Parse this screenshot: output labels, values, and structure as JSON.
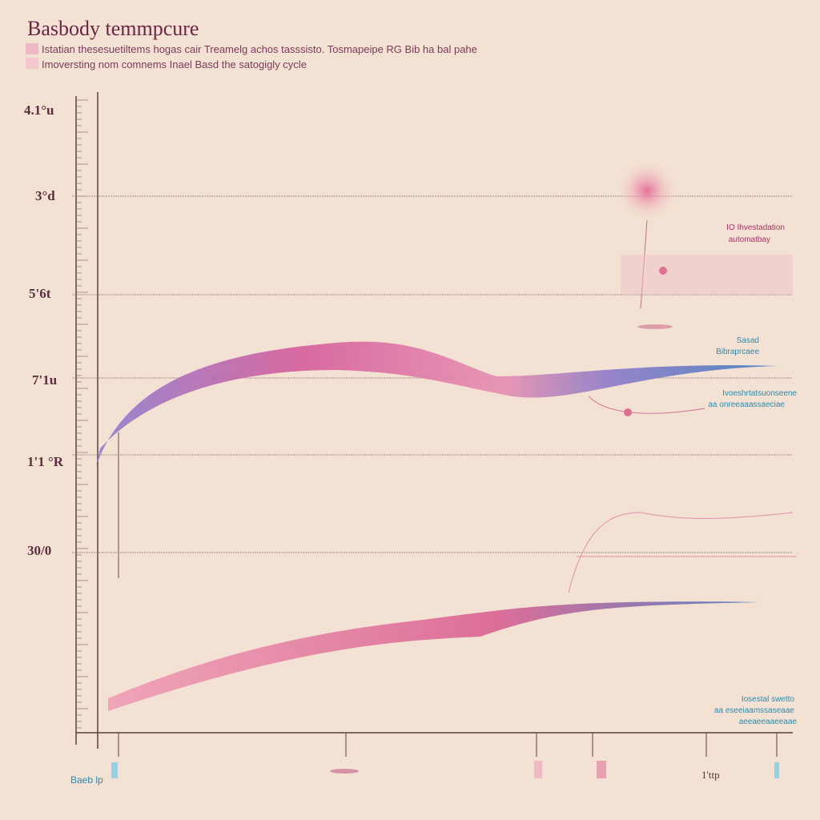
{
  "header": {
    "title": "Basbody temmpcure",
    "subtitle": [
      "Istatian thesesuetiltems hogas cair Treamelg achos tasssisto. Tosmapeipe RG Bib ha bal pahe",
      "Imoversting nom comnems Inael Basd the satogigly cycle"
    ]
  },
  "y_labels": [
    "4.1°u",
    "3°d",
    "5'6t",
    "7'1u",
    "1'1 °R",
    "30/0"
  ],
  "annotations": [
    {
      "lines": [
        "IO Ihvestadation",
        "automatbay"
      ]
    },
    {
      "lines": [
        "Sasad",
        "Bibraprcaee"
      ]
    },
    {
      "lines": [
        "Ivoeshrtatsuonseene",
        "aa onreeaaassaeciae"
      ]
    },
    {
      "lines": [
        "Iosestal swetto",
        "aa eseeiaamssaseaae",
        "aeeaeeaaeeaae"
      ]
    }
  ],
  "x_labels": [
    "Baeb lp",
    "1'ttp"
  ]
}
